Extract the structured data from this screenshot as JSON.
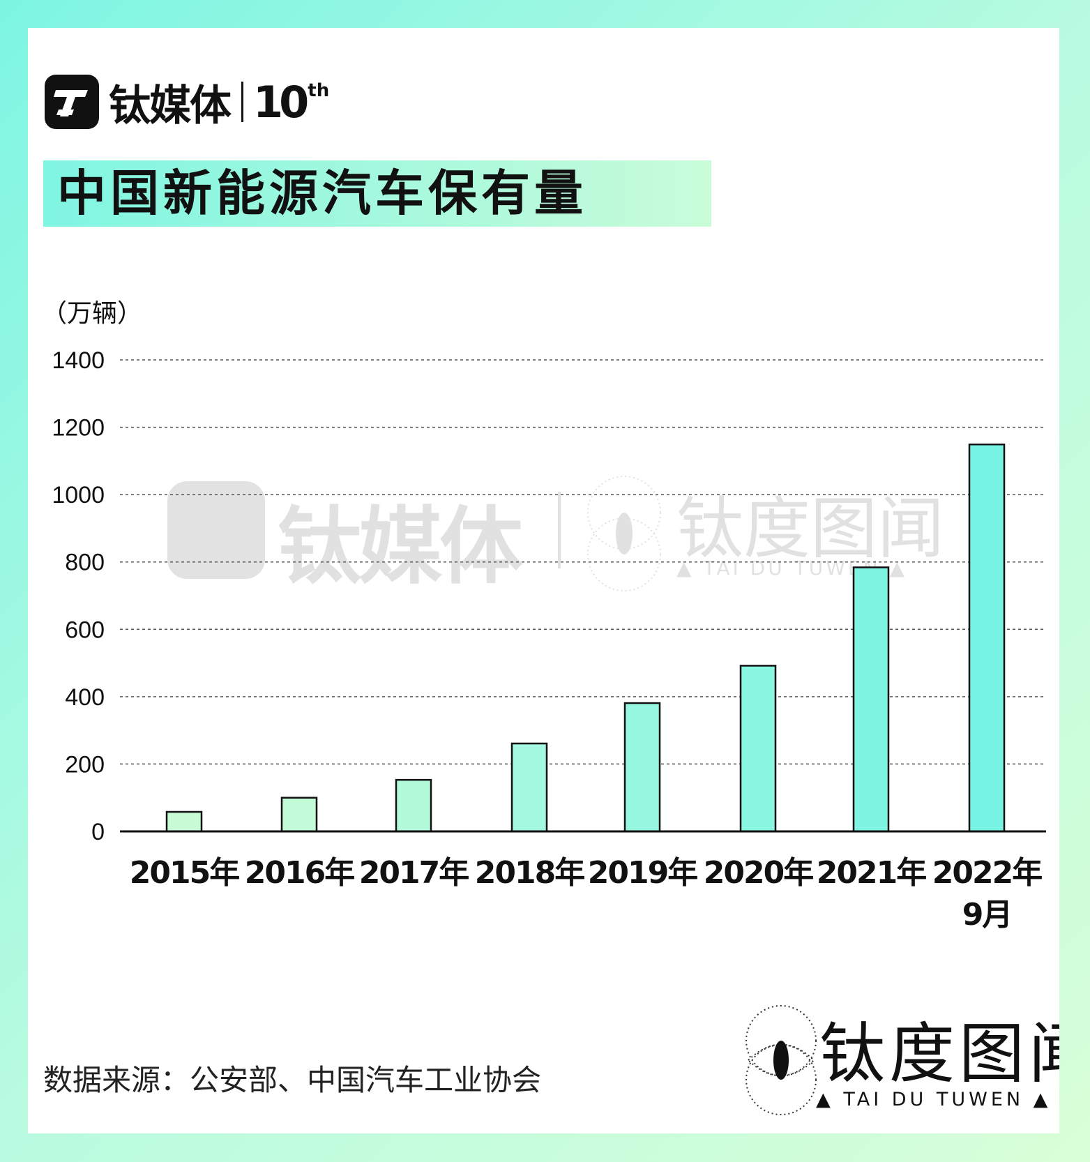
{
  "brand": {
    "name": "钛媒体",
    "ten": "10",
    "ten_sup": "th"
  },
  "watermark": {
    "name": "钛媒体",
    "name2": "钛度图闻",
    "sub": "▲ TAI DU TUWEN ▲"
  },
  "chart_data": {
    "type": "bar",
    "title": "中国新能源汽车保有量",
    "ylabel": "（万辆）",
    "categories": [
      [
        "2015年"
      ],
      [
        "2016年"
      ],
      [
        "2017年"
      ],
      [
        "2018年"
      ],
      [
        "2019年"
      ],
      [
        "2020年"
      ],
      [
        "2021年"
      ],
      [
        "2022年",
        "9月"
      ]
    ],
    "values": [
      58,
      100,
      153,
      261,
      381,
      492,
      784,
      1149
    ],
    "ylim": [
      0,
      1400
    ],
    "yticks": [
      0,
      200,
      400,
      600,
      800,
      1000,
      1200,
      1400
    ],
    "grid": true,
    "colors": [
      "#c6fbd6",
      "#c2fbd7",
      "#b3fadb",
      "#a3f8df",
      "#96f7e0",
      "#88f6e1",
      "#7ff4e2",
      "#76f3e2"
    ]
  },
  "source": "数据来源：公安部、中国汽车工业协会",
  "footer_brand": {
    "name": "钛度图闻",
    "sub": "▲ TAI DU TUWEN ▲"
  }
}
